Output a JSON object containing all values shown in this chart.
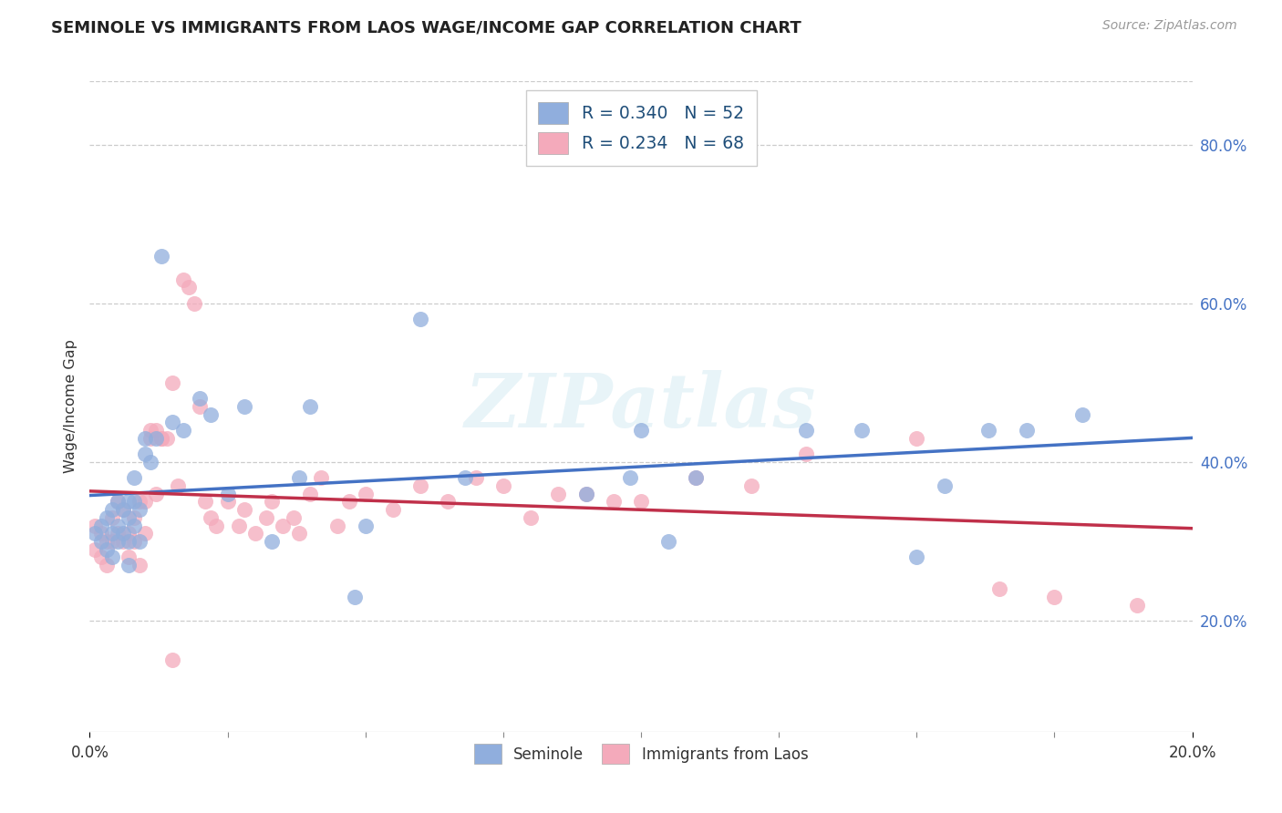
{
  "title": "SEMINOLE VS IMMIGRANTS FROM LAOS WAGE/INCOME GAP CORRELATION CHART",
  "source": "Source: ZipAtlas.com",
  "ylabel": "Wage/Income Gap",
  "xlim": [
    0.0,
    0.2
  ],
  "ylim": [
    0.06,
    0.88
  ],
  "xtick_vals": [
    0.0,
    0.2
  ],
  "xtick_labels": [
    "0.0%",
    "20.0%"
  ],
  "ytick_right_vals": [
    0.2,
    0.4,
    0.6,
    0.8
  ],
  "ytick_right_labels": [
    "20.0%",
    "40.0%",
    "60.0%",
    "80.0%"
  ],
  "series1_label": "Seminole",
  "series1_R": 0.34,
  "series1_N": 52,
  "series1_dot_color": "#90AEDD",
  "series1_line_color": "#4472C4",
  "series2_label": "Immigrants from Laos",
  "series2_R": 0.234,
  "series2_N": 68,
  "series2_dot_color": "#F4AABB",
  "series2_line_color": "#C0304A",
  "watermark": "ZIPatlas",
  "grid_color": "#CCCCCC",
  "series1_x": [
    0.001,
    0.002,
    0.002,
    0.003,
    0.003,
    0.004,
    0.004,
    0.004,
    0.005,
    0.005,
    0.005,
    0.006,
    0.006,
    0.007,
    0.007,
    0.007,
    0.007,
    0.008,
    0.008,
    0.008,
    0.009,
    0.009,
    0.01,
    0.01,
    0.011,
    0.012,
    0.013,
    0.015,
    0.017,
    0.02,
    0.022,
    0.025,
    0.028,
    0.033,
    0.038,
    0.04,
    0.048,
    0.05,
    0.06,
    0.068,
    0.09,
    0.098,
    0.1,
    0.105,
    0.11,
    0.13,
    0.14,
    0.15,
    0.155,
    0.163,
    0.17,
    0.18
  ],
  "series1_y": [
    0.31,
    0.32,
    0.3,
    0.33,
    0.29,
    0.34,
    0.31,
    0.28,
    0.35,
    0.32,
    0.3,
    0.34,
    0.31,
    0.35,
    0.33,
    0.3,
    0.27,
    0.38,
    0.35,
    0.32,
    0.34,
    0.3,
    0.43,
    0.41,
    0.4,
    0.43,
    0.66,
    0.45,
    0.44,
    0.48,
    0.46,
    0.36,
    0.47,
    0.3,
    0.38,
    0.47,
    0.23,
    0.32,
    0.58,
    0.38,
    0.36,
    0.38,
    0.44,
    0.3,
    0.38,
    0.44,
    0.44,
    0.28,
    0.37,
    0.44,
    0.44,
    0.46
  ],
  "series2_x": [
    0.001,
    0.001,
    0.002,
    0.002,
    0.003,
    0.003,
    0.004,
    0.004,
    0.005,
    0.005,
    0.006,
    0.006,
    0.007,
    0.007,
    0.008,
    0.008,
    0.009,
    0.009,
    0.01,
    0.01,
    0.011,
    0.011,
    0.012,
    0.012,
    0.013,
    0.013,
    0.014,
    0.015,
    0.015,
    0.016,
    0.017,
    0.018,
    0.019,
    0.02,
    0.021,
    0.022,
    0.023,
    0.025,
    0.027,
    0.028,
    0.03,
    0.032,
    0.033,
    0.035,
    0.037,
    0.038,
    0.04,
    0.042,
    0.045,
    0.047,
    0.05,
    0.055,
    0.06,
    0.065,
    0.07,
    0.075,
    0.08,
    0.085,
    0.09,
    0.095,
    0.1,
    0.11,
    0.12,
    0.13,
    0.15,
    0.165,
    0.175,
    0.19
  ],
  "series2_y": [
    0.32,
    0.29,
    0.31,
    0.28,
    0.3,
    0.27,
    0.33,
    0.3,
    0.35,
    0.31,
    0.34,
    0.3,
    0.31,
    0.28,
    0.33,
    0.3,
    0.27,
    0.35,
    0.35,
    0.31,
    0.44,
    0.43,
    0.44,
    0.36,
    0.43,
    0.43,
    0.43,
    0.5,
    0.15,
    0.37,
    0.63,
    0.62,
    0.6,
    0.47,
    0.35,
    0.33,
    0.32,
    0.35,
    0.32,
    0.34,
    0.31,
    0.33,
    0.35,
    0.32,
    0.33,
    0.31,
    0.36,
    0.38,
    0.32,
    0.35,
    0.36,
    0.34,
    0.37,
    0.35,
    0.38,
    0.37,
    0.33,
    0.36,
    0.36,
    0.35,
    0.35,
    0.38,
    0.37,
    0.41,
    0.43,
    0.24,
    0.23,
    0.22
  ]
}
